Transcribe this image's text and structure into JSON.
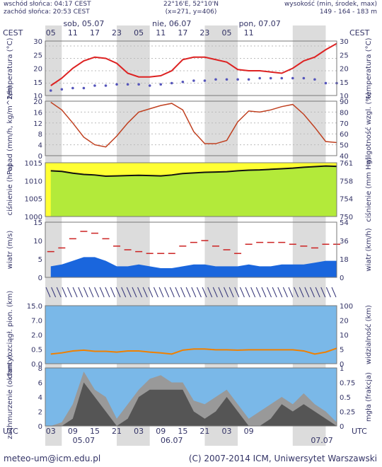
{
  "header": {
    "sunrise": "wschód słońca: 04:17 CEST",
    "sunset": "zachód słońca: 20:53 CEST",
    "coords": "22°16'E, 52°10'N",
    "grid": "(x=271, y=406)",
    "altitude_label": "wysokość (min, środek, max)",
    "altitude_values": "149 - 164 - 183 m",
    "tz_left": "CEST",
    "tz_right": "CEST",
    "days": [
      "sob, 05.07",
      "nie, 06.07",
      "pon, 07.07"
    ],
    "hours": [
      "05",
      "11",
      "17",
      "23",
      "05",
      "11",
      "17",
      "23",
      "05",
      "11"
    ]
  },
  "footer": {
    "tz_left": "UTC",
    "tz_right": "UTC",
    "hours": [
      "03",
      "09",
      "15",
      "21",
      "03",
      "09",
      "15",
      "21",
      "03",
      "09"
    ],
    "dates": [
      "05.07",
      "06.07",
      "07.07"
    ],
    "email": "meteo-um@icm.edu.pl",
    "copyright": "(C) 2007-2014 ICM, Uniwersytet Warszawski"
  },
  "chart_data": [
    {
      "type": "line",
      "panel": "temperature",
      "ylabel_left": "temperatura (°C)",
      "ylabel_right": "temperatura (°C)",
      "left_ticks": [
        "30",
        "25",
        "20",
        "15",
        "10"
      ],
      "right_ticks": [
        "30",
        "25",
        "20",
        "15",
        "10"
      ],
      "ylim": [
        10,
        32
      ],
      "x_hours": [
        0,
        3,
        6,
        9,
        12,
        15,
        18,
        21,
        24,
        27,
        30,
        33,
        36,
        39,
        42,
        45,
        48,
        51,
        54,
        57,
        60,
        63,
        66,
        69,
        72,
        75,
        78
      ],
      "series": [
        {
          "values": [
            14,
            17,
            21,
            24,
            25.5,
            25,
            23,
            19,
            17.5,
            17.5,
            18,
            20,
            24.5,
            25.5,
            25.5,
            24.5,
            23.5,
            20.5,
            20,
            20,
            19.5,
            19,
            21,
            24,
            25.5,
            28.5,
            31
          ]
        },
        {
          "values": [
            12,
            12.5,
            13,
            13,
            14,
            14,
            14.5,
            14.5,
            14.5,
            14,
            14.5,
            15,
            15.5,
            16,
            16,
            16.5,
            16.5,
            16.5,
            16.5,
            17,
            17,
            17,
            17,
            17,
            16.5,
            15,
            15
          ]
        }
      ]
    },
    {
      "type": "bar",
      "panel": "precipitation and humidity",
      "ylabel_left": "opad (mm/h, kg/m^2/h)",
      "ylabel_right": "wilgotność wzgl. (%)",
      "left_ticks": [
        "20",
        "16",
        "12",
        "8",
        "4",
        "0"
      ],
      "right_ticks": [
        "90",
        "80",
        "70",
        "60",
        "50",
        "40"
      ],
      "ylim_left": [
        0,
        20
      ],
      "ylim_right": [
        40,
        90
      ],
      "x_hours": [
        0,
        3,
        6,
        9,
        12,
        15,
        18,
        21,
        24,
        27,
        30,
        33,
        36,
        39,
        42,
        45,
        48,
        51,
        54,
        57,
        60,
        63,
        66,
        69,
        72,
        75,
        78
      ],
      "series": [
        {
          "values": [
            89,
            82,
            70,
            57,
            50,
            48,
            58,
            70,
            80,
            83,
            86,
            88,
            82,
            62,
            51,
            51,
            54,
            71,
            81,
            80,
            82,
            85,
            87,
            78,
            66,
            53,
            52
          ]
        },
        {
          "values": [
            0,
            0,
            0,
            0,
            0,
            0,
            0,
            0,
            0,
            0,
            0,
            0,
            0,
            0,
            0,
            0,
            0,
            0,
            0,
            0,
            0,
            0,
            0,
            0,
            0,
            0,
            0
          ]
        }
      ]
    },
    {
      "type": "area",
      "panel": "pressure",
      "ylabel_left": "ciśnienie (hPa)",
      "ylabel_right": "ciśnienie (mm Hg)",
      "left_ticks": [
        "1015",
        "1010",
        "1005",
        "1000"
      ],
      "right_ticks": [
        "761",
        "758",
        "754",
        "750"
      ],
      "ylim": [
        1000,
        1018
      ],
      "x_hours": [
        0,
        3,
        6,
        9,
        12,
        15,
        18,
        21,
        24,
        27,
        30,
        33,
        36,
        39,
        42,
        45,
        48,
        51,
        54,
        57,
        60,
        63,
        66,
        69,
        72,
        75,
        78
      ],
      "series": [
        {
          "values": [
            1015.3,
            1015.1,
            1014.5,
            1014.1,
            1013.9,
            1013.5,
            1013.6,
            1013.7,
            1013.8,
            1013.7,
            1013.6,
            1013.9,
            1014.4,
            1014.6,
            1014.8,
            1014.9,
            1015.0,
            1015.3,
            1015.5,
            1015.6,
            1015.8,
            1016.0,
            1016.2,
            1016.5,
            1016.7,
            1016.9,
            1016.8
          ]
        }
      ]
    },
    {
      "type": "area",
      "panel": "wind",
      "ylabel_left": "wiatr (m/s)",
      "ylabel_right": "wiatr (km/h)",
      "left_ticks": [
        "15",
        "10",
        "5",
        "0"
      ],
      "right_ticks": [
        "54",
        "36",
        "18",
        "0"
      ],
      "ylim": [
        0,
        15
      ],
      "x_hours": [
        0,
        3,
        6,
        9,
        12,
        15,
        18,
        21,
        24,
        27,
        30,
        33,
        36,
        39,
        42,
        45,
        48,
        51,
        54,
        57,
        60,
        63,
        66,
        69,
        72,
        75,
        78
      ],
      "series": [
        {
          "values": [
            3,
            3.5,
            4.5,
            5.5,
            5.5,
            4.5,
            3,
            3,
            3.5,
            3,
            2.5,
            2.5,
            3,
            3.5,
            3.5,
            3,
            3,
            3,
            3.5,
            3,
            3,
            3.5,
            3.5,
            3.5,
            4,
            4.5,
            4.5
          ]
        },
        {
          "values": [
            7,
            8,
            10.5,
            12.5,
            12,
            10.5,
            8.5,
            7.5,
            7,
            6.5,
            6.5,
            6.5,
            8.5,
            9.5,
            10,
            8.5,
            7.5,
            6.5,
            9,
            9.5,
            9.5,
            9.5,
            9,
            8.5,
            8,
            9,
            9
          ]
        }
      ]
    },
    {
      "type": "line",
      "panel": "visibility and cloud base",
      "ylabel_left": "chm. rozciągł. pion. (km)",
      "ylabel_right": "widzialność (km)",
      "left_ticks": [
        "15.0",
        "7.0",
        "2.0",
        "0.5",
        "0.0"
      ],
      "right_ticks": [
        "100",
        "20",
        "10",
        "5",
        "0"
      ],
      "ylim": [
        0,
        100
      ],
      "x_hours": [
        0,
        3,
        6,
        9,
        12,
        15,
        18,
        21,
        24,
        27,
        30,
        33,
        36,
        39,
        42,
        45,
        48,
        51,
        54,
        57,
        60,
        63,
        66,
        69,
        72,
        75,
        78
      ],
      "series": [
        {
          "values": [
            2.5,
            2.8,
            3.3,
            3.5,
            3.2,
            3.2,
            3.0,
            3.3,
            3.3,
            3.0,
            2.8,
            2.5,
            3.5,
            3.8,
            3.8,
            3.6,
            3.6,
            3.5,
            3.6,
            3.6,
            3.6,
            3.6,
            3.6,
            3.3,
            2.5,
            3.0,
            4.0
          ]
        }
      ]
    },
    {
      "type": "area",
      "panel": "cloud cover and fog",
      "ylabel_left": "zachmurzenie (oktanty)",
      "ylabel_right": "mgła (frakcja)",
      "left_ticks": [
        "8",
        "6",
        "4",
        "2",
        "0"
      ],
      "right_ticks": [
        "1",
        "0.75",
        "0.5",
        "0.25",
        "0"
      ],
      "ylim": [
        0,
        8
      ],
      "x_hours": [
        0,
        3,
        6,
        9,
        12,
        15,
        18,
        21,
        24,
        27,
        30,
        33,
        36,
        39,
        42,
        45,
        48,
        51,
        54,
        57,
        60,
        63,
        66,
        69,
        72,
        75,
        78
      ],
      "series": [
        {
          "values": [
            0,
            0.5,
            3,
            7.5,
            5,
            4,
            1,
            3,
            5,
            6.5,
            7,
            6,
            6,
            3.5,
            3,
            4,
            5,
            3,
            1,
            2,
            3,
            4,
            3,
            4.5,
            3,
            2,
            0.5
          ]
        },
        {
          "values": [
            0,
            0,
            1,
            6,
            4,
            2,
            0,
            1,
            4,
            5,
            5,
            5,
            5,
            2,
            1,
            2,
            4,
            2,
            0,
            0,
            1,
            3,
            2,
            3,
            2,
            1,
            0
          ]
        }
      ]
    }
  ]
}
